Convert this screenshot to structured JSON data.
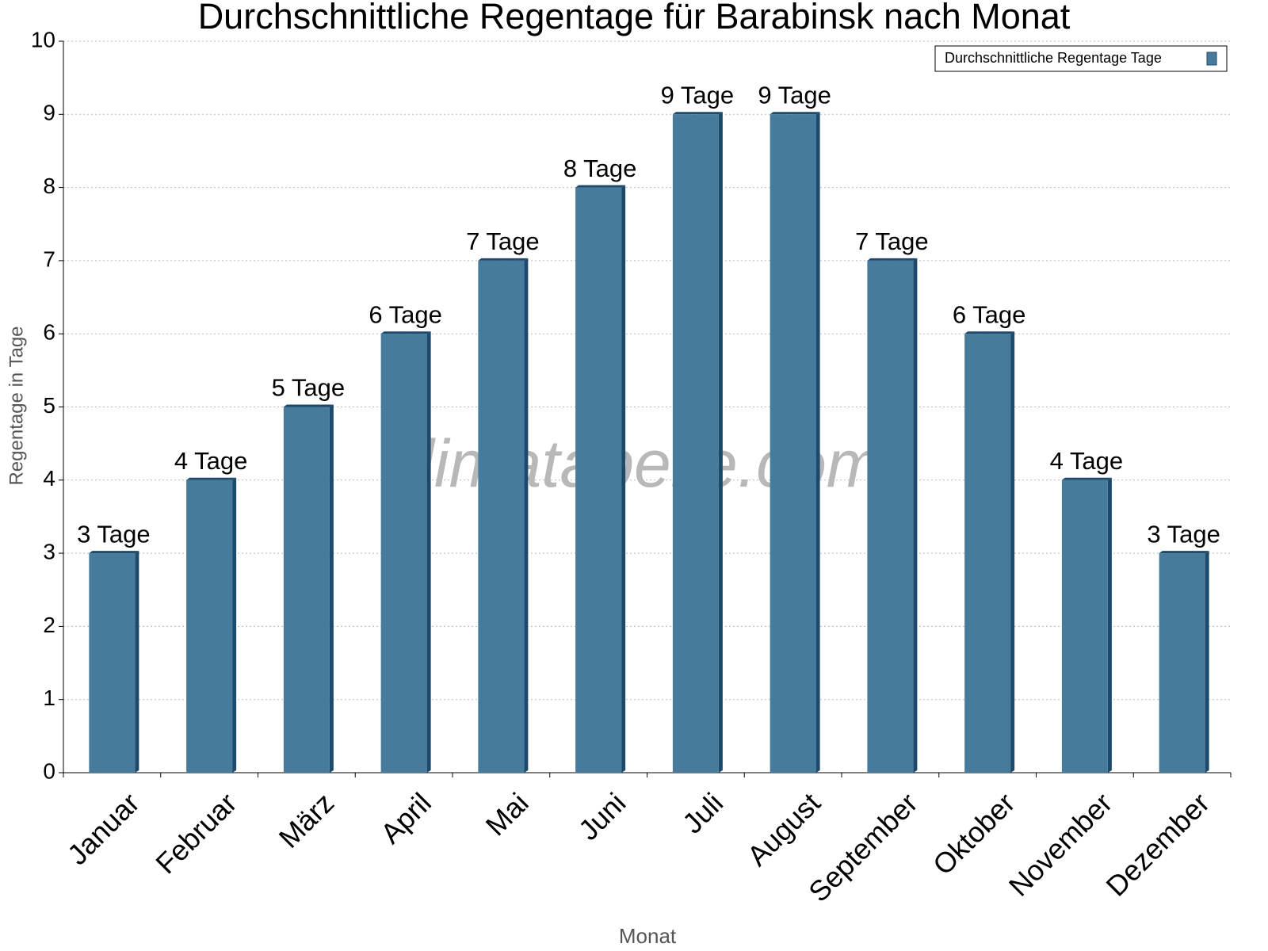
{
  "chart_data": {
    "type": "bar",
    "title": "Durchschnittliche Regentage für Barabinsk nach Monat",
    "x_label": "Monat",
    "y_label": "Regentage in Tage",
    "watermark": "klimatabelle.com",
    "categories": [
      "Januar",
      "Februar",
      "März",
      "April",
      "Mai",
      "Juni",
      "Juli",
      "August",
      "September",
      "Oktober",
      "November",
      "Dezember"
    ],
    "series": [
      {
        "name": "Durchschnittliche Regentage Tage",
        "color": "#467b9c",
        "values": [
          3,
          4,
          5,
          6,
          7,
          8,
          9,
          9,
          7,
          6,
          4,
          3
        ],
        "value_labels": [
          "3 Tage",
          "4 Tage",
          "5 Tage",
          "6 Tage",
          "7 Tage",
          "8 Tage",
          "9 Tage",
          "9 Tage",
          "7 Tage",
          "6 Tage",
          "4 Tage",
          "3 Tage"
        ]
      }
    ],
    "ylim": [
      0,
      10
    ],
    "yticks": [
      0,
      1,
      2,
      3,
      4,
      5,
      6,
      7,
      8,
      9,
      10
    ],
    "grid": true,
    "legend": "top-right"
  }
}
